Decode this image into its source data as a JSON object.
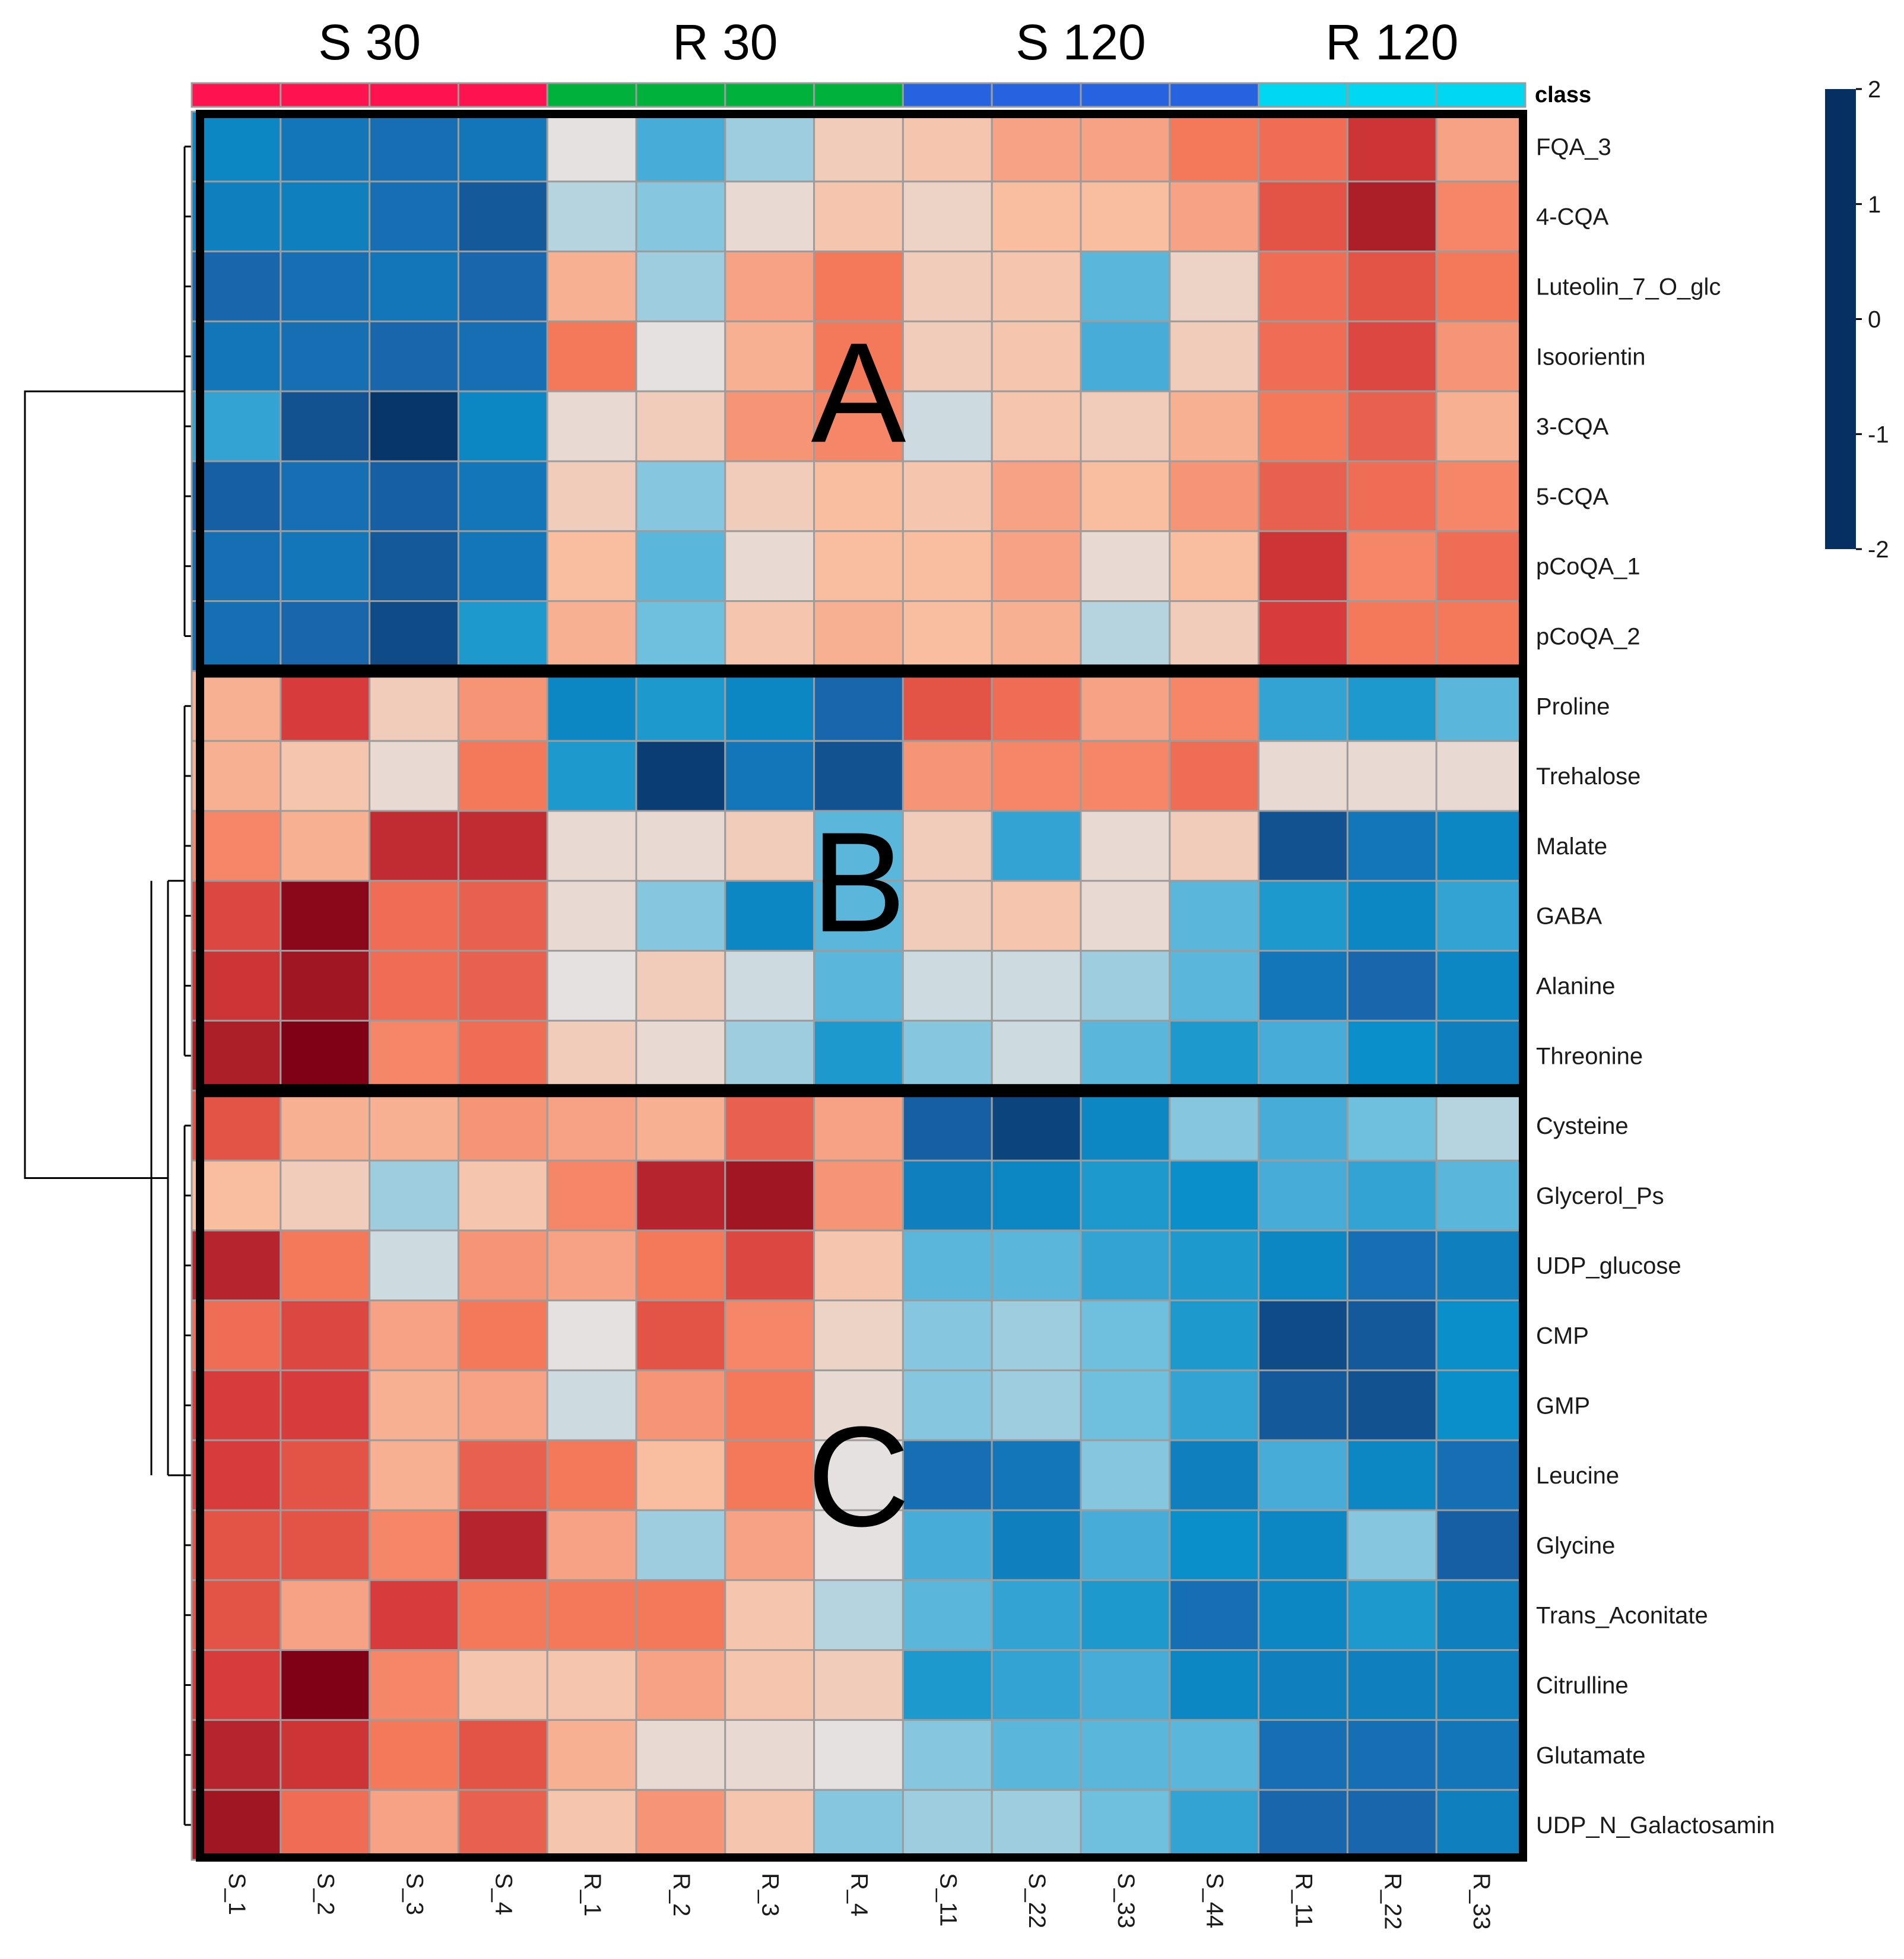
{
  "chart_data": {
    "type": "heatmap",
    "title": "",
    "group_labels": [
      "S 30",
      "R 30",
      "S 120",
      "R 120"
    ],
    "group_sizes": [
      4,
      4,
      4,
      3
    ],
    "group_colors": [
      "#ff124f",
      "#00b23c",
      "#2563e0",
      "#00d8f2"
    ],
    "class_label": "class",
    "columns": [
      "S_1",
      "S_2",
      "S_3",
      "S_4",
      "R_1",
      "R_2",
      "R_3",
      "R_4",
      "S_11",
      "S_22",
      "S_33",
      "S_44",
      "R_11",
      "R_22",
      "R_33"
    ],
    "rows": [
      "FQA_3",
      "4-CQA",
      "Luteolin_7_O_glc",
      "Isoorientin",
      "3-CQA",
      "5-CQA",
      "pCoQA_1",
      "pCoQA_2",
      "Proline",
      "Trehalose",
      "Malate",
      "GABA",
      "Alanine",
      "Threonine",
      "Cysteine",
      "Glycerol_Ps",
      "UDP_glucose",
      "CMP",
      "GMP",
      "Leucine",
      "Glycine",
      "Trans_Aconitate",
      "Citrulline",
      "Glutamate",
      "UDP_N_Galactosamin"
    ],
    "values": [
      [
        -1.1,
        -1.3,
        -1.4,
        -1.3,
        0.0,
        -0.7,
        -0.3,
        0.3,
        0.4,
        0.7,
        0.7,
        1.0,
        1.1,
        1.6,
        0.7
      ],
      [
        -1.2,
        -1.2,
        -1.4,
        -1.7,
        -0.2,
        -0.4,
        0.1,
        0.4,
        0.2,
        0.5,
        0.5,
        0.7,
        1.3,
        1.9,
        0.9
      ],
      [
        -1.5,
        -1.4,
        -1.3,
        -1.5,
        0.6,
        -0.3,
        0.7,
        1.0,
        0.3,
        0.4,
        -0.6,
        0.2,
        1.1,
        1.3,
        1.0
      ],
      [
        -1.3,
        -1.4,
        -1.5,
        -1.4,
        1.0,
        0.0,
        0.6,
        1.0,
        0.3,
        0.4,
        -0.7,
        0.3,
        1.1,
        1.4,
        0.8
      ],
      [
        -0.8,
        -1.8,
        -2.2,
        -1.1,
        0.1,
        0.3,
        0.8,
        0.9,
        -0.1,
        0.4,
        0.3,
        0.6,
        1.0,
        1.2,
        0.6
      ],
      [
        -1.6,
        -1.4,
        -1.6,
        -1.3,
        0.3,
        -0.4,
        0.3,
        0.5,
        0.4,
        0.7,
        0.5,
        0.8,
        1.2,
        1.1,
        0.9
      ],
      [
        -1.4,
        -1.3,
        -1.7,
        -1.3,
        0.5,
        -0.6,
        0.1,
        0.5,
        0.5,
        0.7,
        0.1,
        0.5,
        1.6,
        0.9,
        1.1
      ],
      [
        -1.4,
        -1.5,
        -1.9,
        -0.9,
        0.6,
        -0.5,
        0.4,
        0.6,
        0.5,
        0.6,
        -0.2,
        0.3,
        1.5,
        1.0,
        1.0
      ],
      [
        0.6,
        1.5,
        0.3,
        0.8,
        -1.1,
        -0.9,
        -1.1,
        -1.5,
        1.3,
        1.1,
        0.7,
        0.9,
        -0.8,
        -0.9,
        -0.6
      ],
      [
        0.6,
        0.4,
        0.1,
        1.0,
        -0.9,
        -2.1,
        -1.3,
        -1.8,
        0.8,
        0.9,
        0.9,
        1.1,
        0.1,
        0.1,
        0.1
      ],
      [
        0.9,
        0.6,
        1.7,
        1.7,
        0.1,
        0.1,
        0.3,
        -0.6,
        0.3,
        -0.8,
        0.1,
        0.3,
        -1.8,
        -1.3,
        -1.1
      ],
      [
        1.4,
        2.2,
        1.1,
        1.2,
        0.1,
        -0.4,
        -1.1,
        -0.6,
        0.3,
        0.4,
        0.1,
        -0.6,
        -0.9,
        -1.1,
        -0.8
      ],
      [
        1.6,
        2.0,
        1.1,
        1.2,
        0.0,
        0.3,
        -0.1,
        -0.6,
        -0.1,
        -0.1,
        -0.3,
        -0.6,
        -1.3,
        -1.5,
        -1.1
      ],
      [
        1.9,
        2.3,
        0.9,
        1.1,
        0.3,
        0.1,
        -0.3,
        -0.9,
        -0.4,
        -0.1,
        -0.6,
        -0.9,
        -0.7,
        -1.0,
        -1.2
      ],
      [
        1.3,
        0.6,
        0.6,
        0.8,
        0.7,
        0.6,
        1.2,
        0.7,
        -1.6,
        -2.0,
        -1.1,
        -0.4,
        -0.7,
        -0.5,
        -0.2
      ],
      [
        0.5,
        0.3,
        -0.3,
        0.4,
        0.9,
        1.8,
        2.0,
        0.8,
        -1.2,
        -1.1,
        -0.9,
        -1.0,
        -0.7,
        -0.8,
        -0.6
      ],
      [
        1.8,
        1.0,
        -0.1,
        0.8,
        0.7,
        1.0,
        1.4,
        0.4,
        -0.6,
        -0.6,
        -0.8,
        -0.9,
        -1.1,
        -1.4,
        -1.2
      ],
      [
        1.1,
        1.4,
        0.7,
        1.0,
        0.0,
        1.3,
        0.9,
        0.2,
        -0.4,
        -0.3,
        -0.5,
        -0.9,
        -1.9,
        -1.7,
        -1.0
      ],
      [
        1.5,
        1.5,
        0.6,
        0.7,
        -0.1,
        0.8,
        1.0,
        0.1,
        -0.4,
        -0.3,
        -0.5,
        -0.8,
        -1.7,
        -1.8,
        -1.0
      ],
      [
        1.5,
        1.3,
        0.6,
        1.2,
        1.0,
        0.5,
        1.0,
        0.0,
        -1.4,
        -1.3,
        -0.4,
        -1.2,
        -0.7,
        -1.1,
        -1.4
      ],
      [
        1.3,
        1.3,
        0.9,
        1.8,
        0.7,
        -0.3,
        0.7,
        0.0,
        -0.7,
        -1.2,
        -0.7,
        -1.0,
        -1.1,
        -0.4,
        -1.6
      ],
      [
        1.3,
        0.7,
        1.5,
        1.0,
        1.0,
        1.0,
        0.4,
        -0.2,
        -0.6,
        -0.8,
        -0.9,
        -1.4,
        -1.1,
        -0.9,
        -1.2
      ],
      [
        1.5,
        2.3,
        0.9,
        0.4,
        0.4,
        0.7,
        0.4,
        0.3,
        -0.9,
        -0.8,
        -0.7,
        -1.1,
        -1.2,
        -1.2,
        -1.2
      ],
      [
        1.8,
        1.6,
        1.0,
        1.3,
        0.6,
        0.1,
        0.1,
        0.0,
        -0.4,
        -0.6,
        -0.6,
        -0.6,
        -1.4,
        -1.4,
        -1.3
      ],
      [
        2.0,
        1.1,
        0.7,
        1.2,
        0.4,
        0.8,
        0.4,
        -0.4,
        -0.3,
        -0.3,
        -0.5,
        -0.8,
        -1.5,
        -1.5,
        -1.2
      ]
    ],
    "clusters": [
      {
        "label": "A",
        "row_start": 0,
        "row_end": 7
      },
      {
        "label": "B",
        "row_start": 8,
        "row_end": 13
      },
      {
        "label": "C",
        "row_start": 14,
        "row_end": 24
      }
    ],
    "colorbar": {
      "range": [
        -2,
        2
      ],
      "ticks": [
        "2",
        "1",
        "0",
        "-1",
        "-2"
      ],
      "tick_values": [
        2,
        1,
        0,
        -1,
        -2
      ],
      "stops": [
        {
          "v": -2.3,
          "c": "#053061"
        },
        {
          "v": -1.5,
          "c": "#1966ad"
        },
        {
          "v": -1.0,
          "c": "#0a8fca"
        },
        {
          "v": -0.5,
          "c": "#6fc0df"
        },
        {
          "v": 0.0,
          "c": "#e4e1e0"
        },
        {
          "v": 0.5,
          "c": "#f9bea0"
        },
        {
          "v": 1.0,
          "c": "#f4795a"
        },
        {
          "v": 1.5,
          "c": "#d73b3b"
        },
        {
          "v": 2.3,
          "c": "#800015"
        }
      ]
    }
  }
}
